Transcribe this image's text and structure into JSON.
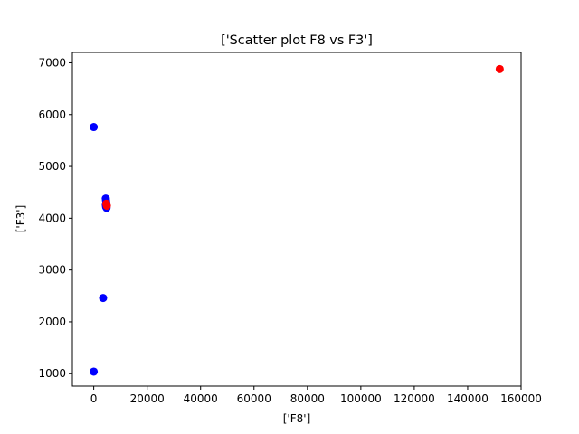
{
  "chart_data": {
    "type": "scatter",
    "title": "['Scatter plot F8 vs F3']",
    "xlabel": "['F8']",
    "ylabel": "['F3']",
    "xlim": [
      -8000,
      160000
    ],
    "ylim": [
      760,
      7200
    ],
    "xticks": [
      0,
      20000,
      40000,
      60000,
      80000,
      100000,
      120000,
      140000,
      160000
    ],
    "yticks": [
      1000,
      2000,
      3000,
      4000,
      5000,
      6000,
      7000
    ],
    "grid": false,
    "series": [
      {
        "color": "#0000ff",
        "points": [
          {
            "x": 0,
            "y": 5760
          },
          {
            "x": 0,
            "y": 1040
          },
          {
            "x": 3500,
            "y": 2460
          },
          {
            "x": 4500,
            "y": 4380
          },
          {
            "x": 4600,
            "y": 4340
          },
          {
            "x": 4700,
            "y": 4300
          },
          {
            "x": 4500,
            "y": 4260
          },
          {
            "x": 4600,
            "y": 4220
          },
          {
            "x": 4800,
            "y": 4200
          }
        ]
      },
      {
        "color": "#ff0000",
        "points": [
          {
            "x": 152000,
            "y": 6880
          },
          {
            "x": 4700,
            "y": 4280
          },
          {
            "x": 4900,
            "y": 4240
          }
        ]
      }
    ]
  }
}
